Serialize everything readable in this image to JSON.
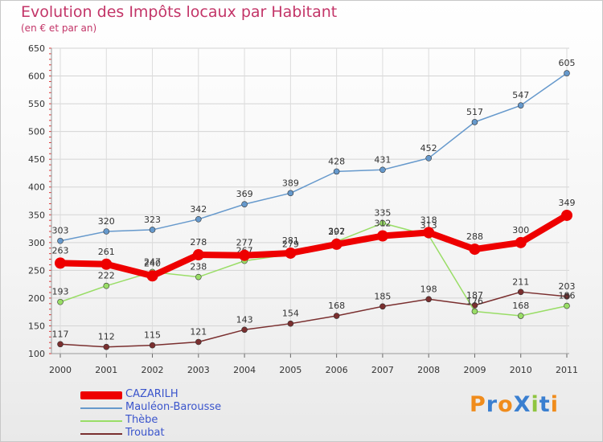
{
  "title": "Evolution des Impôts locaux par Habitant",
  "subtitle": "(en € et par an)",
  "logo": "ProXiti",
  "chart_data": {
    "type": "line",
    "title": "Evolution des Impôts locaux par Habitant",
    "subtitle": "(en € et par an)",
    "xlabel": "",
    "ylabel": "",
    "categories": [
      "2000",
      "2001",
      "2002",
      "2003",
      "2004",
      "2005",
      "2006",
      "2007",
      "2008",
      "2009",
      "2010",
      "2011"
    ],
    "ylim": [
      100,
      650
    ],
    "yticks": [
      100,
      150,
      200,
      250,
      300,
      350,
      400,
      450,
      500,
      550,
      600,
      650
    ],
    "grid": true,
    "legend_position": "bottom-left",
    "series": [
      {
        "name": "CAZARILH",
        "color": "#ee0000",
        "values": [
          263,
          261,
          240,
          278,
          277,
          281,
          297,
          312,
          318,
          288,
          300,
          349
        ]
      },
      {
        "name": "Mauléon-Barousse",
        "color": "#6699cc",
        "values": [
          303,
          320,
          323,
          342,
          369,
          389,
          428,
          431,
          452,
          517,
          547,
          605
        ]
      },
      {
        "name": "Thèbe",
        "color": "#99dd66",
        "values": [
          193,
          222,
          247,
          238,
          267,
          279,
          302,
          335,
          313,
          176,
          168,
          186
        ]
      },
      {
        "name": "Troubat",
        "color": "#7a2f2f",
        "values": [
          117,
          112,
          115,
          121,
          143,
          154,
          168,
          185,
          198,
          187,
          211,
          203
        ]
      }
    ]
  }
}
